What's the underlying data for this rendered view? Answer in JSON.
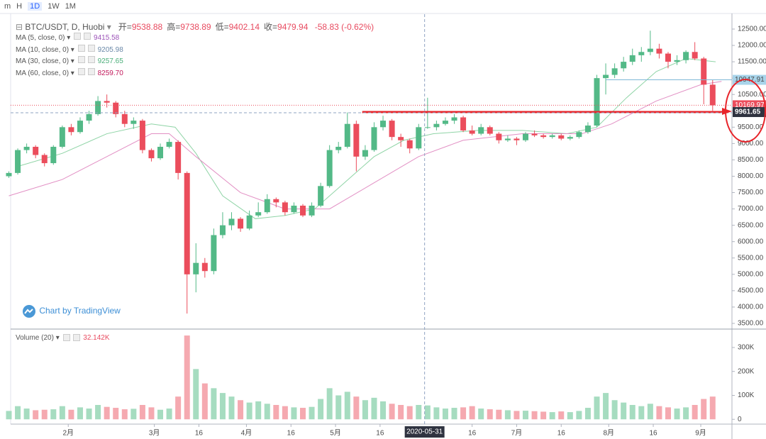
{
  "toolbar": {
    "items": [
      "m",
      "H",
      "1D",
      "1W",
      "1M"
    ],
    "active": "1D"
  },
  "chart_data": [
    {
      "type": "candlestick",
      "title": "BTC/USDT, D, Huobi",
      "ohlc": {
        "labels": [
          "开=",
          "高=",
          "低=",
          "收="
        ],
        "values": [
          9538.88,
          9738.89,
          9402.14,
          9479.94
        ],
        "change": "-58.83 (-0.62%)"
      },
      "legend": [
        {
          "name": "MA (5, close, 0)",
          "value": 9415.58,
          "color": "#9c52b8"
        },
        {
          "name": "MA (10, close, 0)",
          "value": 9205.98,
          "color": "#6a88a8"
        },
        {
          "name": "MA (30, close, 0)",
          "value": 9257.65,
          "color": "#4caf7a"
        },
        {
          "name": "MA (60, close, 0)",
          "value": 8259.7,
          "value_label": "8259.70",
          "color": "#c2185b"
        }
      ],
      "watermark": "Chart by TradingView",
      "up_color": "#53b987",
      "down_color": "#eb4d5c",
      "candles": {
        "x": [
          12,
          15,
          18,
          21,
          24,
          27,
          30,
          33,
          36,
          39,
          42,
          45,
          48,
          51,
          54,
          57,
          60,
          63,
          66,
          69,
          72,
          75,
          78,
          81,
          84,
          87,
          90,
          93,
          96,
          99,
          102,
          105,
          108,
          111,
          114,
          117,
          120,
          123,
          126,
          129,
          132,
          135,
          138,
          141,
          144,
          147,
          150,
          153,
          156,
          159,
          162,
          165,
          168,
          171,
          174,
          177,
          180,
          183,
          186,
          189,
          192,
          195,
          198,
          201,
          204,
          207,
          210,
          213,
          216,
          219,
          222,
          225,
          228,
          231,
          234,
          237,
          240,
          243,
          246,
          249
        ],
        "open": [
          8000,
          8100,
          8800,
          8900,
          8650,
          8400,
          8900,
          9500,
          9350,
          9700,
          9900,
          10300,
          10250,
          9900,
          9600,
          9700,
          8800,
          8550,
          8900,
          9050,
          8100,
          5000,
          5350,
          5100,
          6200,
          6500,
          6700,
          6400,
          6800,
          6900,
          7300,
          7200,
          6900,
          7100,
          6800,
          7100,
          7700,
          8800,
          8900,
          9600,
          8600,
          8800,
          9500,
          9700,
          9200,
          9100,
          8850,
          9500,
          9500,
          9600,
          9700,
          9800,
          9400,
          9300,
          9500,
          9300,
          9100,
          9150,
          9100,
          9300,
          9250,
          9200,
          9250,
          9150,
          9200,
          9350,
          9550,
          11000,
          11100,
          11300,
          11500,
          11700,
          11800,
          11900,
          11750,
          11500,
          11550,
          11800,
          11600,
          10800
        ],
        "high": [
          8150,
          8850,
          9000,
          8950,
          8700,
          8950,
          9550,
          9600,
          9800,
          10000,
          10450,
          10500,
          10300,
          10000,
          9800,
          9750,
          8850,
          9000,
          9150,
          9100,
          8150,
          5950,
          5500,
          6400,
          6900,
          6900,
          6750,
          6950,
          7200,
          7450,
          7350,
          7250,
          7200,
          7150,
          7200,
          7800,
          8950,
          9050,
          9950,
          9700,
          8950,
          9650,
          9850,
          9750,
          9300,
          9150,
          9600,
          10400,
          9700,
          9800,
          9900,
          9850,
          9550,
          9600,
          9550,
          9350,
          9250,
          9200,
          9350,
          9400,
          9300,
          9300,
          9300,
          9250,
          9400,
          9650,
          11100,
          11450,
          11450,
          11650,
          11900,
          11950,
          12450,
          12050,
          11800,
          11700,
          11850,
          12100,
          11650,
          10950
        ],
        "low": [
          7950,
          8050,
          8700,
          8550,
          8300,
          8350,
          8850,
          9250,
          9300,
          9600,
          9850,
          10100,
          9800,
          9500,
          9450,
          8700,
          8450,
          8500,
          8850,
          7900,
          3800,
          4450,
          4900,
          5000,
          6100,
          6350,
          6300,
          6350,
          6750,
          6850,
          7050,
          6800,
          6850,
          6750,
          6750,
          7050,
          7650,
          8700,
          8850,
          8150,
          8500,
          8750,
          9400,
          9100,
          8900,
          8700,
          8800,
          9450,
          9400,
          9550,
          9600,
          9350,
          9250,
          9250,
          9250,
          9000,
          9050,
          8950,
          9050,
          9200,
          9150,
          9150,
          9100,
          9100,
          9150,
          9300,
          9500,
          10500,
          11000,
          11200,
          11400,
          11500,
          11700,
          11600,
          11300,
          11400,
          11450,
          11550,
          10200,
          10000
        ],
        "close": [
          8100,
          8800,
          8900,
          8650,
          8400,
          8900,
          9500,
          9350,
          9700,
          9900,
          10300,
          10250,
          9900,
          9600,
          9700,
          8800,
          8550,
          8900,
          9050,
          8100,
          5000,
          5350,
          5100,
          6200,
          6500,
          6700,
          6400,
          6800,
          6900,
          7300,
          7200,
          6900,
          7100,
          6800,
          7100,
          7700,
          8800,
          8900,
          9600,
          8600,
          8800,
          9500,
          9700,
          9200,
          9100,
          8850,
          9500,
          9500,
          9600,
          9700,
          9800,
          9400,
          9300,
          9500,
          9300,
          9100,
          9150,
          9100,
          9300,
          9250,
          9200,
          9250,
          9150,
          9200,
          9350,
          9550,
          11000,
          11100,
          11300,
          11500,
          11700,
          11800,
          11900,
          11750,
          11500,
          11550,
          11800,
          11600,
          10800,
          10169.97
        ]
      },
      "ma": [
        {
          "name": "MA (30, close, 0)",
          "color": "#8fd4a6",
          "x": [
            15,
            30,
            45,
            60,
            68,
            75,
            84,
            95,
            105,
            115,
            125,
            135,
            145,
            155,
            170,
            185,
            200,
            210,
            220,
            230,
            240,
            250
          ],
          "values": [
            8300,
            8700,
            9300,
            9600,
            9500,
            8700,
            7400,
            6700,
            6800,
            7000,
            7800,
            8600,
            9100,
            9300,
            9400,
            9400,
            9300,
            9500,
            10400,
            11200,
            11600,
            11500
          ]
        },
        {
          "name": "MA (60, close, 0)",
          "color": "#e28fc4",
          "x": [
            12,
            30,
            45,
            60,
            66,
            75,
            90,
            105,
            120,
            135,
            150,
            165,
            185,
            205,
            215,
            230,
            245,
            252
          ],
          "values": [
            7400,
            7900,
            8600,
            9300,
            9300,
            8600,
            7500,
            7000,
            7000,
            7800,
            8600,
            9100,
            9300,
            9300,
            9600,
            10300,
            10800,
            10900
          ]
        }
      ],
      "level_line": 10947.91,
      "level_label": "10947.91",
      "drawn_line": 9961.65,
      "xlim": [
        12.6,
        255.5
      ],
      "ylim": [
        3348,
        12955
      ],
      "yticks": [
        {
          "value": 3500,
          "label": "3500.00"
        },
        {
          "value": 4000,
          "label": "4000.00"
        },
        {
          "value": 4500,
          "label": "4500.00"
        },
        {
          "value": 5000,
          "label": "5000.00"
        },
        {
          "value": 5500,
          "label": "5500.00"
        },
        {
          "value": 6000,
          "label": "6000.00"
        },
        {
          "value": 6500,
          "label": "6500.00"
        },
        {
          "value": 7000,
          "label": "7000.00"
        },
        {
          "value": 7500,
          "label": "7500.00"
        },
        {
          "value": 8000,
          "label": "8000.00"
        },
        {
          "value": 8500,
          "label": "8500.00"
        },
        {
          "value": 9000,
          "label": "9000.00"
        },
        {
          "value": 9500,
          "label": "9500.00"
        },
        {
          "value": 10000,
          "label": "10000.00"
        },
        {
          "value": 10500,
          "label": "10500.00"
        },
        {
          "value": 11000,
          "label": "11000.00"
        },
        {
          "value": 11500,
          "label": "11500.00"
        },
        {
          "value": 12000,
          "label": "12000.00"
        },
        {
          "value": 12500,
          "label": "12500.00"
        }
      ]
    },
    {
      "type": "bar",
      "title": "Volume (20)",
      "last_value": "32.142K",
      "x": [
        12,
        15,
        18,
        21,
        24,
        27,
        30,
        33,
        36,
        39,
        42,
        45,
        48,
        51,
        54,
        57,
        60,
        63,
        66,
        69,
        72,
        75,
        78,
        81,
        84,
        87,
        90,
        93,
        96,
        99,
        102,
        105,
        108,
        111,
        114,
        117,
        120,
        123,
        126,
        129,
        132,
        135,
        138,
        141,
        144,
        147,
        150,
        153,
        156,
        159,
        162,
        165,
        168,
        171,
        174,
        177,
        180,
        183,
        186,
        189,
        192,
        195,
        198,
        201,
        204,
        207,
        210,
        213,
        216,
        219,
        222,
        225,
        228,
        231,
        234,
        237,
        240,
        243,
        246,
        249
      ],
      "values": [
        35000,
        55000,
        45000,
        38000,
        40000,
        42000,
        55000,
        40000,
        50000,
        45000,
        60000,
        52000,
        48000,
        42000,
        44000,
        60000,
        50000,
        40000,
        45000,
        95000,
        350000,
        210000,
        150000,
        130000,
        110000,
        95000,
        80000,
        70000,
        75000,
        65000,
        60000,
        55000,
        50000,
        48000,
        52000,
        85000,
        130000,
        100000,
        115000,
        95000,
        80000,
        90000,
        75000,
        65000,
        60000,
        55000,
        60000,
        58000,
        50000,
        45000,
        48000,
        50000,
        55000,
        45000,
        42000,
        40000,
        38000,
        35000,
        36000,
        34000,
        32000,
        30000,
        33000,
        30000,
        35000,
        48000,
        95000,
        110000,
        80000,
        70000,
        60000,
        55000,
        65000,
        55000,
        50000,
        45000,
        50000,
        60000,
        85000,
        95000
      ],
      "xlim": [
        12.6,
        255.5
      ],
      "ylim": [
        -20000,
        371000
      ],
      "yticks": [
        {
          "value": 0,
          "label": "0"
        },
        {
          "value": 100000,
          "label": "100K"
        },
        {
          "value": 200000,
          "label": "200K"
        },
        {
          "value": 300000,
          "label": "300K"
        }
      ],
      "xticks": [
        {
          "value": 32,
          "label": "2月"
        },
        {
          "value": 61,
          "label": "3月"
        },
        {
          "value": 76,
          "label": "16"
        },
        {
          "value": 92,
          "label": "4月"
        },
        {
          "value": 107,
          "label": "16"
        },
        {
          "value": 122,
          "label": "5月"
        },
        {
          "value": 137,
          "label": "16"
        },
        {
          "value": 168,
          "label": "16"
        },
        {
          "value": 183,
          "label": "7月"
        },
        {
          "value": 198,
          "label": "16"
        },
        {
          "value": 214,
          "label": "8月"
        },
        {
          "value": 229,
          "label": "16"
        },
        {
          "value": 245,
          "label": "9月"
        }
      ],
      "crosshair": {
        "x": 152,
        "label": "2020-05-31"
      }
    }
  ]
}
